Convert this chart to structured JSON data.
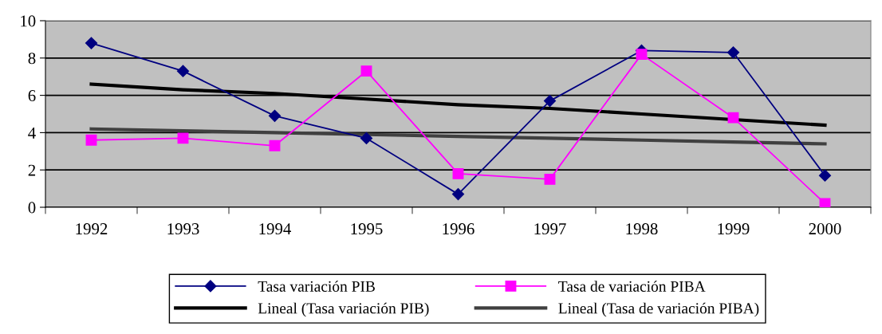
{
  "chart_data": {
    "type": "line",
    "categories": [
      "1992",
      "1993",
      "1994",
      "1995",
      "1996",
      "1997",
      "1998",
      "1999",
      "2000"
    ],
    "series": [
      {
        "name": "Tasa variación PIB",
        "color": "#000080",
        "marker": "diamond",
        "values": [
          8.8,
          7.3,
          4.9,
          3.7,
          0.7,
          5.7,
          8.4,
          8.3,
          1.7
        ]
      },
      {
        "name": "Tasa de variación PIBA",
        "color": "#ff00ff",
        "marker": "square",
        "values": [
          3.6,
          3.7,
          3.3,
          7.3,
          1.8,
          1.5,
          8.2,
          4.8,
          0.2
        ]
      },
      {
        "name": "Lineal (Tasa variación PIB)",
        "color": "#000000",
        "marker": "none",
        "values": [
          6.6,
          6.3,
          6.1,
          5.8,
          5.5,
          5.3,
          5.0,
          4.7,
          4.4
        ]
      },
      {
        "name": "Lineal (Tasa de variación PIBA)",
        "color": "#404040",
        "marker": "none",
        "values": [
          4.2,
          4.1,
          4.0,
          3.9,
          3.8,
          3.7,
          3.6,
          3.5,
          3.4
        ]
      }
    ],
    "ylim": [
      0,
      10
    ],
    "yticks": [
      0,
      2,
      4,
      6,
      8,
      10
    ],
    "grid": "y",
    "legend": "bottom"
  }
}
